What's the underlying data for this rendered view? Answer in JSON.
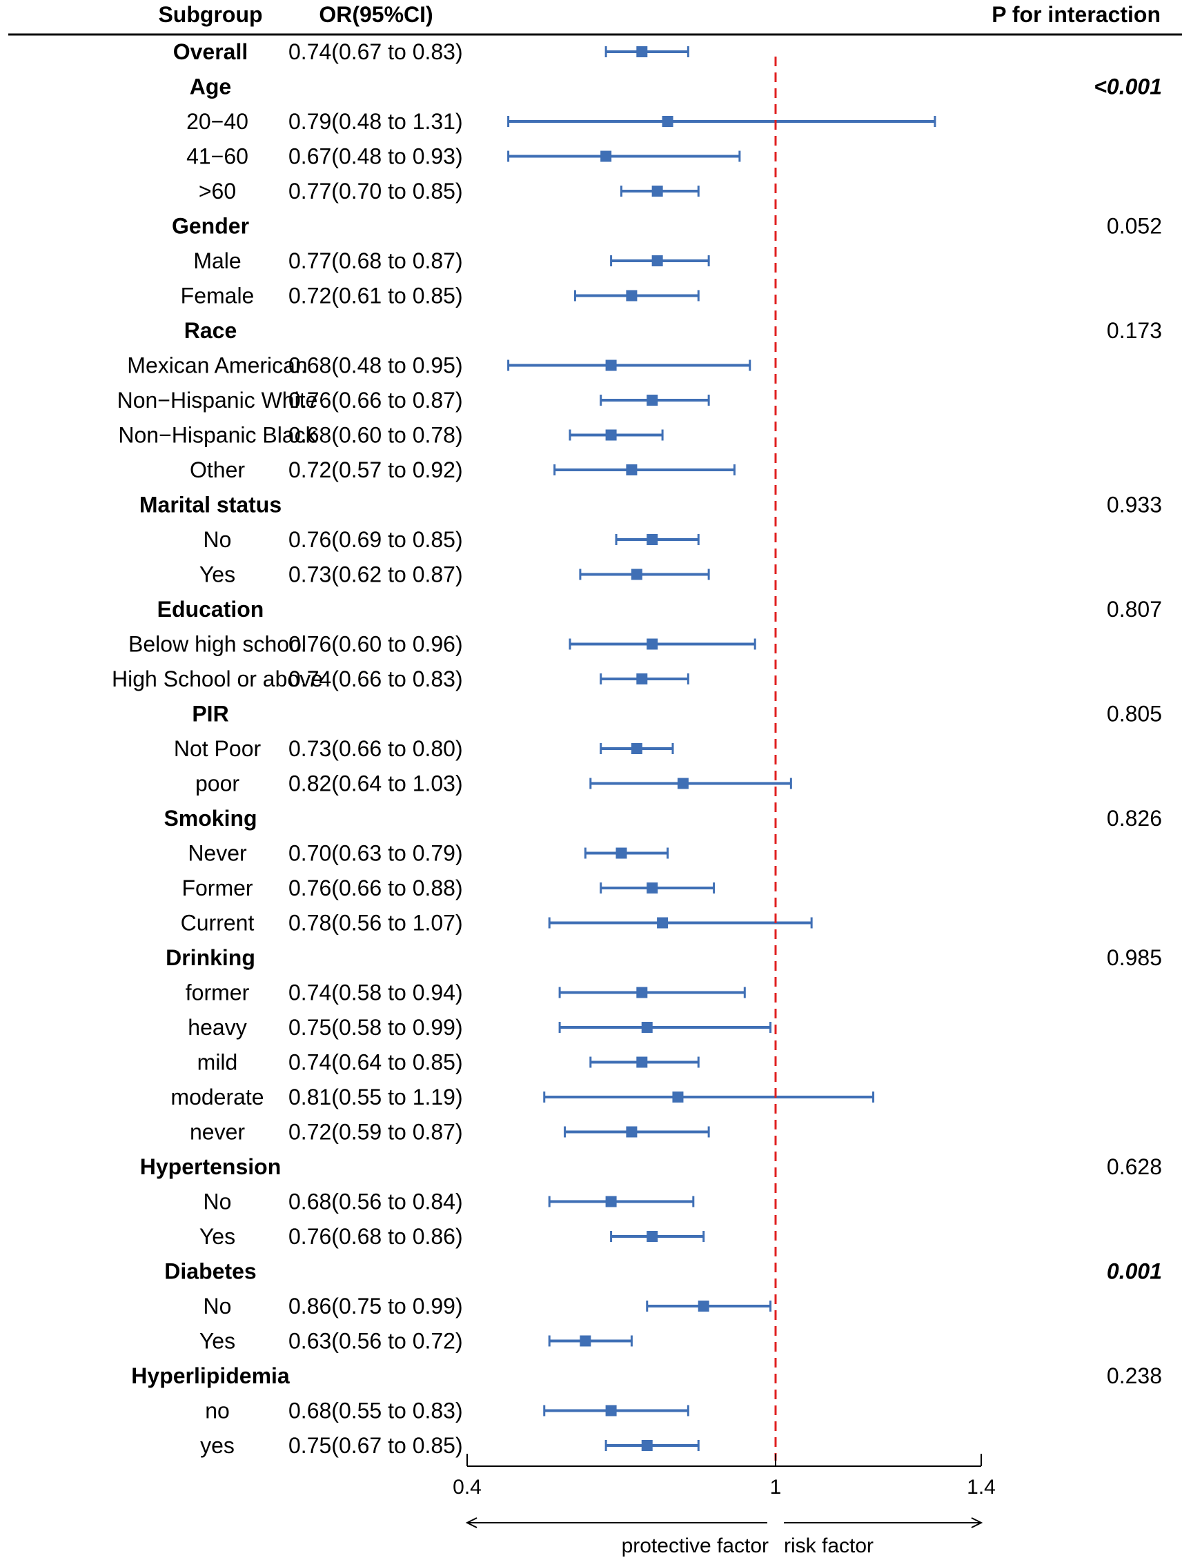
{
  "chart_data": {
    "type": "forest",
    "headers": {
      "subgroup": "Subgroup",
      "or": "OR(95%CI)",
      "p": "P for interaction"
    },
    "xaxis": {
      "min": 0.4,
      "max": 1.4,
      "ticks": [
        "0.4",
        "1",
        "1.4"
      ],
      "tick_values": [
        0.4,
        1.0,
        1.4
      ],
      "reference": 1.0
    },
    "direction_labels": {
      "left": "protective factor",
      "right": "risk factor"
    },
    "colors": {
      "estimate": "#3f6fb5",
      "reference_line": "#e02020",
      "text": "#000000"
    },
    "rows": [
      {
        "label": "Overall",
        "group": true,
        "or_text": "0.74(0.67 to 0.83)",
        "est": 0.74,
        "lo": 0.67,
        "hi": 0.83
      },
      {
        "label": "Age",
        "group": true,
        "p": "<0.001",
        "p_sig": true
      },
      {
        "label": "20−40",
        "group": false,
        "or_text": "0.79(0.48 to 1.31)",
        "est": 0.79,
        "lo": 0.48,
        "hi": 1.31
      },
      {
        "label": "41−60",
        "group": false,
        "or_text": "0.67(0.48 to 0.93)",
        "est": 0.67,
        "lo": 0.48,
        "hi": 0.93
      },
      {
        "label": ">60",
        "group": false,
        "or_text": "0.77(0.70 to 0.85)",
        "est": 0.77,
        "lo": 0.7,
        "hi": 0.85
      },
      {
        "label": "Gender",
        "group": true,
        "p": "0.052"
      },
      {
        "label": "Male",
        "group": false,
        "or_text": "0.77(0.68 to 0.87)",
        "est": 0.77,
        "lo": 0.68,
        "hi": 0.87
      },
      {
        "label": "Female",
        "group": false,
        "or_text": "0.72(0.61 to 0.85)",
        "est": 0.72,
        "lo": 0.61,
        "hi": 0.85
      },
      {
        "label": "Race",
        "group": true,
        "p": "0.173"
      },
      {
        "label": "Mexican American",
        "group": false,
        "or_text": "0.68(0.48 to 0.95)",
        "est": 0.68,
        "lo": 0.48,
        "hi": 0.95
      },
      {
        "label": "Non−Hispanic White",
        "group": false,
        "or_text": "0.76(0.66 to 0.87)",
        "est": 0.76,
        "lo": 0.66,
        "hi": 0.87
      },
      {
        "label": "Non−Hispanic Black",
        "group": false,
        "or_text": "0.68(0.60 to 0.78)",
        "est": 0.68,
        "lo": 0.6,
        "hi": 0.78
      },
      {
        "label": "Other",
        "group": false,
        "or_text": "0.72(0.57 to 0.92)",
        "est": 0.72,
        "lo": 0.57,
        "hi": 0.92
      },
      {
        "label": "Marital status",
        "group": true,
        "p": "0.933"
      },
      {
        "label": "No",
        "group": false,
        "or_text": "0.76(0.69 to 0.85)",
        "est": 0.76,
        "lo": 0.69,
        "hi": 0.85
      },
      {
        "label": "Yes",
        "group": false,
        "or_text": "0.73(0.62 to 0.87)",
        "est": 0.73,
        "lo": 0.62,
        "hi": 0.87
      },
      {
        "label": "Education",
        "group": true,
        "p": "0.807"
      },
      {
        "label": "Below high school",
        "group": false,
        "or_text": "0.76(0.60 to 0.96)",
        "est": 0.76,
        "lo": 0.6,
        "hi": 0.96
      },
      {
        "label": "High School or above",
        "group": false,
        "or_text": "0.74(0.66 to 0.83)",
        "est": 0.74,
        "lo": 0.66,
        "hi": 0.83
      },
      {
        "label": "PIR",
        "group": true,
        "p": "0.805"
      },
      {
        "label": "Not Poor",
        "group": false,
        "or_text": "0.73(0.66 to 0.80)",
        "est": 0.73,
        "lo": 0.66,
        "hi": 0.8
      },
      {
        "label": "poor",
        "group": false,
        "or_text": "0.82(0.64 to 1.03)",
        "est": 0.82,
        "lo": 0.64,
        "hi": 1.03
      },
      {
        "label": "Smoking",
        "group": true,
        "p": "0.826"
      },
      {
        "label": "Never",
        "group": false,
        "or_text": "0.70(0.63 to 0.79)",
        "est": 0.7,
        "lo": 0.63,
        "hi": 0.79
      },
      {
        "label": "Former",
        "group": false,
        "or_text": "0.76(0.66 to 0.88)",
        "est": 0.76,
        "lo": 0.66,
        "hi": 0.88
      },
      {
        "label": "Current",
        "group": false,
        "or_text": "0.78(0.56 to 1.07)",
        "est": 0.78,
        "lo": 0.56,
        "hi": 1.07
      },
      {
        "label": "Drinking",
        "group": true,
        "p": "0.985"
      },
      {
        "label": "former",
        "group": false,
        "or_text": "0.74(0.58 to 0.94)",
        "est": 0.74,
        "lo": 0.58,
        "hi": 0.94
      },
      {
        "label": "heavy",
        "group": false,
        "or_text": "0.75(0.58 to 0.99)",
        "est": 0.75,
        "lo": 0.58,
        "hi": 0.99
      },
      {
        "label": "mild",
        "group": false,
        "or_text": "0.74(0.64 to 0.85)",
        "est": 0.74,
        "lo": 0.64,
        "hi": 0.85
      },
      {
        "label": "moderate",
        "group": false,
        "or_text": "0.81(0.55 to 1.19)",
        "est": 0.81,
        "lo": 0.55,
        "hi": 1.19
      },
      {
        "label": "never",
        "group": false,
        "or_text": "0.72(0.59 to 0.87)",
        "est": 0.72,
        "lo": 0.59,
        "hi": 0.87
      },
      {
        "label": "Hypertension",
        "group": true,
        "p": "0.628"
      },
      {
        "label": "No",
        "group": false,
        "or_text": "0.68(0.56 to 0.84)",
        "est": 0.68,
        "lo": 0.56,
        "hi": 0.84
      },
      {
        "label": "Yes",
        "group": false,
        "or_text": "0.76(0.68 to 0.86)",
        "est": 0.76,
        "lo": 0.68,
        "hi": 0.86
      },
      {
        "label": "Diabetes",
        "group": true,
        "p": "0.001",
        "p_sig": true
      },
      {
        "label": "No",
        "group": false,
        "or_text": "0.86(0.75 to 0.99)",
        "est": 0.86,
        "lo": 0.75,
        "hi": 0.99
      },
      {
        "label": "Yes",
        "group": false,
        "or_text": "0.63(0.56 to 0.72)",
        "est": 0.63,
        "lo": 0.56,
        "hi": 0.72
      },
      {
        "label": "Hyperlipidemia",
        "group": true,
        "p": "0.238"
      },
      {
        "label": "no",
        "group": false,
        "or_text": "0.68(0.55 to 0.83)",
        "est": 0.68,
        "lo": 0.55,
        "hi": 0.83
      },
      {
        "label": "yes",
        "group": false,
        "or_text": "0.75(0.67 to 0.85)",
        "est": 0.75,
        "lo": 0.67,
        "hi": 0.85
      }
    ]
  }
}
